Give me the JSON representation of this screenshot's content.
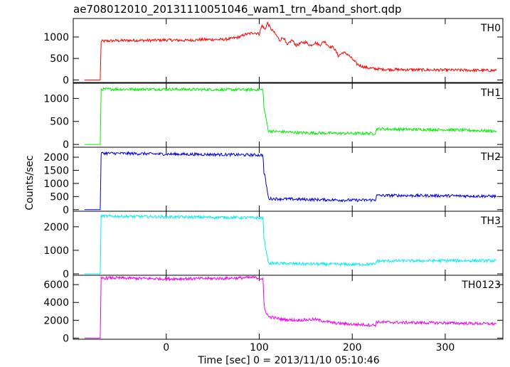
{
  "title": "ae708012010_20131110051046_wam1_trn_4band_short.qdp",
  "xlabel": "Time [sec] 0 = 2013/11/10 05:10:46",
  "ylabel": "Counts/sec",
  "chart_data": {
    "type": "line",
    "xlim": [
      -100,
      362
    ],
    "xticks": [
      0,
      100,
      200,
      300
    ],
    "xtick_labels": [
      "0",
      "100",
      "200",
      "300"
    ],
    "grid": false,
    "panels": [
      {
        "name": "TH0",
        "color": "#ff0000",
        "ylim": [
          -60,
          1430
        ],
        "yticks": [
          0,
          500,
          1000
        ],
        "ytick_labels": [
          "0",
          "500",
          "1000"
        ],
        "x": [
          -88,
          -71,
          -70,
          -60,
          -40,
          -20,
          0,
          20,
          40,
          60,
          70,
          80,
          85,
          90,
          95,
          100,
          103,
          106,
          109,
          112,
          115,
          118,
          122,
          126,
          130,
          135,
          140,
          145,
          150,
          155,
          160,
          165,
          170,
          175,
          180,
          185,
          190,
          195,
          200,
          205,
          210,
          215,
          220,
          230,
          250,
          300,
          355
        ],
        "y": [
          0,
          0,
          900,
          910,
          920,
          920,
          930,
          920,
          940,
          940,
          960,
          1010,
          1060,
          1080,
          1100,
          1070,
          1270,
          1170,
          1330,
          1200,
          1130,
          1050,
          920,
          1000,
          800,
          930,
          800,
          860,
          880,
          800,
          870,
          810,
          900,
          780,
          760,
          560,
          640,
          600,
          490,
          370,
          320,
          290,
          270,
          250,
          240,
          230,
          220
        ]
      },
      {
        "name": "TH1",
        "color": "#00ee00",
        "ylim": [
          -60,
          1330
        ],
        "yticks": [
          0,
          500,
          1000
        ],
        "ytick_labels": [
          "0",
          "500",
          "1000"
        ],
        "x": [
          -88,
          -71,
          -70,
          -60,
          0,
          60,
          104,
          105,
          106,
          110,
          150,
          200,
          225,
          226,
          250,
          300,
          355
        ],
        "y": [
          0,
          0,
          1200,
          1200,
          1200,
          1190,
          1190,
          800,
          700,
          290,
          250,
          240,
          240,
          340,
          330,
          320,
          290
        ]
      },
      {
        "name": "TH2",
        "color": "#0000dd",
        "ylim": [
          -60,
          2380
        ],
        "yticks": [
          0,
          500,
          1000,
          1500,
          2000
        ],
        "ytick_labels": [
          "0",
          "500",
          "1000",
          "1500",
          "2000"
        ],
        "x": [
          -88,
          -71,
          -70,
          -60,
          0,
          60,
          104,
          105,
          106,
          110,
          150,
          200,
          225,
          226,
          250,
          300,
          355
        ],
        "y": [
          0,
          0,
          2150,
          2150,
          2120,
          2100,
          2080,
          1400,
          1300,
          420,
          390,
          360,
          370,
          540,
          540,
          530,
          510
        ]
      },
      {
        "name": "TH3",
        "color": "#00eeee",
        "ylim": [
          -60,
          2660
        ],
        "yticks": [
          0,
          1000,
          2000
        ],
        "ytick_labels": [
          "0",
          "1000",
          "2000"
        ],
        "x": [
          -88,
          -71,
          -70,
          -60,
          0,
          60,
          104,
          105,
          106,
          110,
          150,
          200,
          225,
          226,
          250,
          300,
          355
        ],
        "y": [
          0,
          0,
          2450,
          2450,
          2420,
          2400,
          2380,
          1500,
          1300,
          450,
          420,
          400,
          410,
          540,
          550,
          560,
          560
        ]
      },
      {
        "name": "TH0123",
        "color": "#ee00ee",
        "ylim": [
          -130,
          7050
        ],
        "yticks": [
          0,
          2000,
          4000,
          6000
        ],
        "ytick_labels": [
          "0",
          "2000",
          "4000",
          "6000"
        ],
        "x": [
          -88,
          -71,
          -70,
          -60,
          0,
          60,
          95,
          104,
          105,
          106,
          110,
          125,
          140,
          160,
          170,
          180,
          200,
          225,
          226,
          250,
          300,
          355
        ],
        "y": [
          0,
          0,
          6700,
          6750,
          6650,
          6700,
          6800,
          6650,
          4000,
          3200,
          2400,
          2100,
          2000,
          2100,
          1900,
          1700,
          1550,
          1450,
          1800,
          1750,
          1700,
          1600
        ]
      }
    ]
  }
}
